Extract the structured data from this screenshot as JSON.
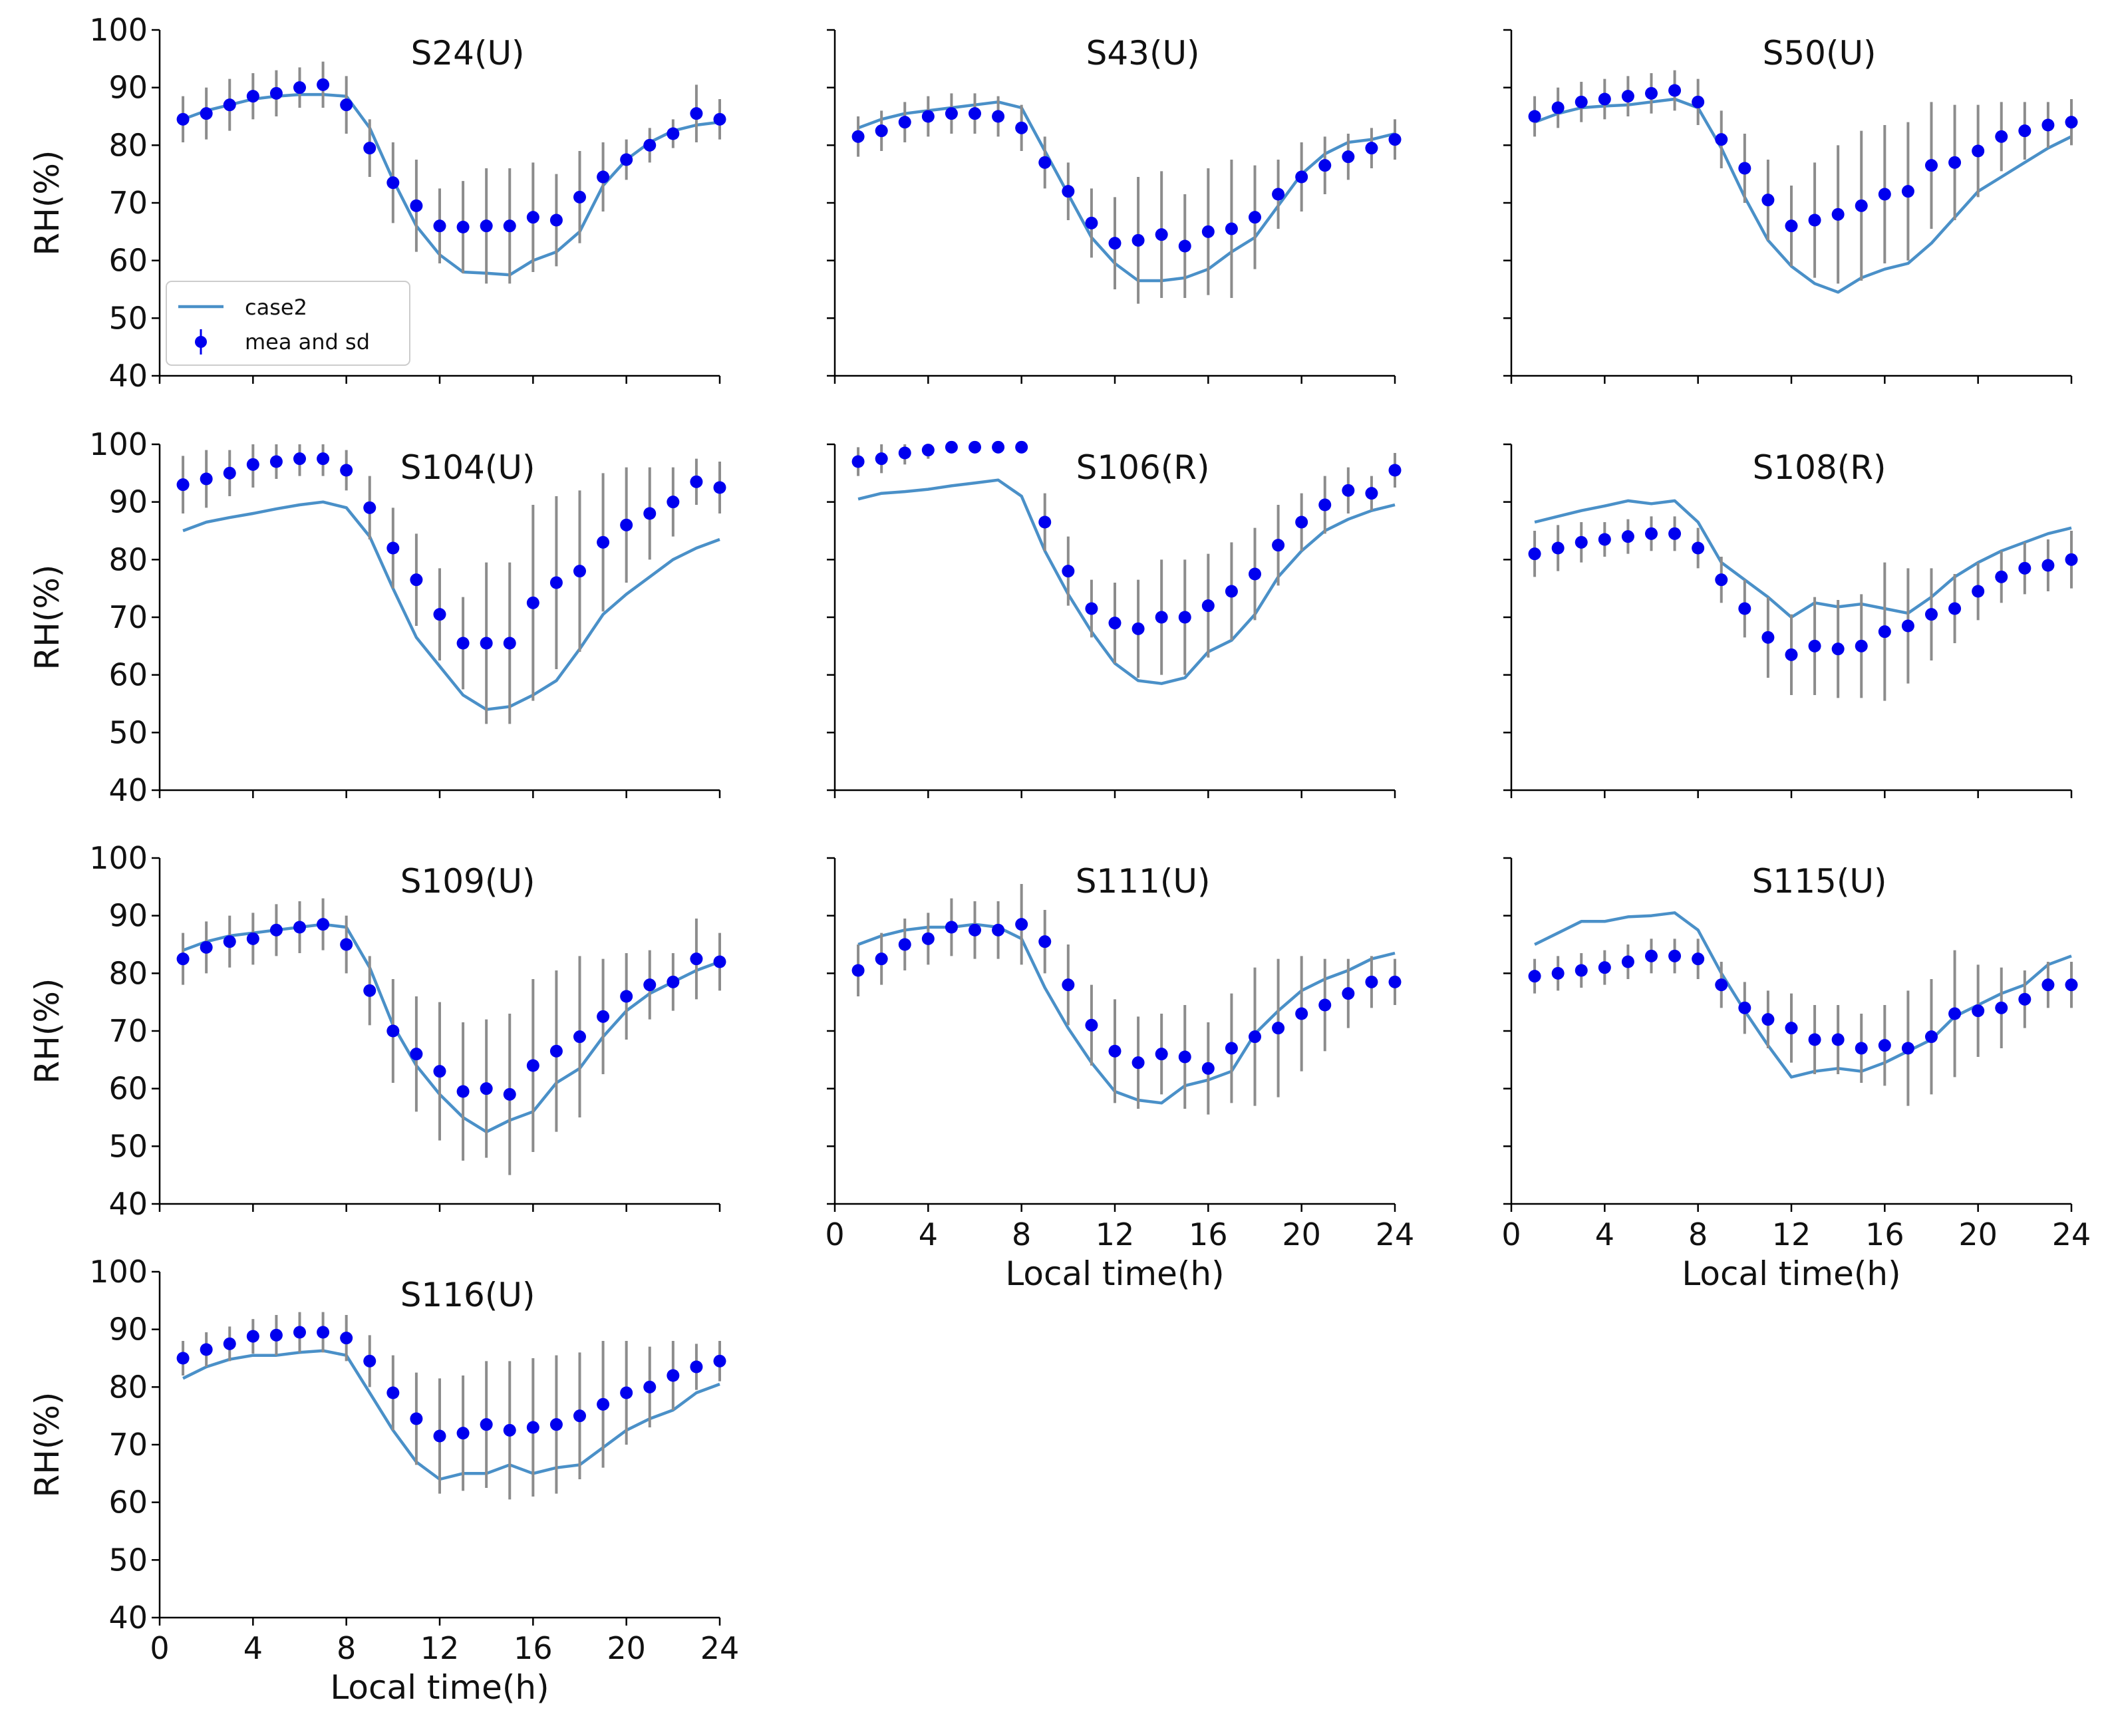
{
  "chart_data": {
    "type": "scatter",
    "xlabel": "Local time(h)",
    "ylabel": "RH(%)",
    "xlim": [
      0,
      24
    ],
    "ylim": [
      40,
      100
    ],
    "xticks": [
      0,
      4,
      8,
      12,
      16,
      20,
      24
    ],
    "yticks": [
      40,
      50,
      60,
      70,
      80,
      90,
      100
    ],
    "hours": [
      1,
      2,
      3,
      4,
      5,
      6,
      7,
      8,
      9,
      10,
      11,
      12,
      13,
      14,
      15,
      16,
      17,
      18,
      19,
      20,
      21,
      22,
      23,
      24
    ],
    "legend": {
      "placement": "lower-left",
      "line_label": "case2",
      "marker_label": "mea and sd"
    },
    "colors": {
      "line": "#4a90c8",
      "marker": "#0000ee",
      "errorbar": "#8c8c8c"
    },
    "grid": false,
    "panels": [
      {
        "title": "S24(U)",
        "case2": [
          84.5,
          86,
          87,
          88,
          88.5,
          88.8,
          88.8,
          88.5,
          83,
          74,
          66,
          61,
          58,
          57.8,
          57.5,
          60,
          61.5,
          65,
          73,
          77.5,
          80.5,
          82.5,
          83.5,
          84
        ],
        "mea": [
          84.5,
          85.5,
          87,
          88.5,
          89,
          90,
          90.5,
          87,
          79.5,
          73.5,
          69.5,
          66,
          65.8,
          66,
          66,
          67.5,
          67,
          71,
          74.5,
          77.5,
          80,
          82,
          85.5,
          84.5
        ],
        "sd": [
          4,
          4.5,
          4.5,
          4,
          4,
          3.5,
          4,
          5,
          5,
          7,
          8,
          6.5,
          8,
          10,
          10,
          9.5,
          8,
          8,
          6,
          3.5,
          3,
          2.5,
          5,
          3.5
        ]
      },
      {
        "title": "S43(U)",
        "case2": [
          83,
          84.5,
          85.5,
          86,
          86.5,
          87,
          87.5,
          86.5,
          79,
          71.5,
          64,
          59.5,
          56.5,
          56.5,
          57,
          58.5,
          61.5,
          64,
          69.5,
          75,
          78.5,
          80.5,
          81,
          82
        ],
        "mea": [
          81.5,
          82.5,
          84,
          85,
          85.5,
          85.5,
          85,
          83,
          77,
          72,
          66.5,
          63,
          63.5,
          64.5,
          62.5,
          65,
          65.5,
          67.5,
          71.5,
          74.5,
          76.5,
          78,
          79.5,
          81
        ],
        "sd": [
          3.5,
          3.5,
          3.5,
          3.5,
          3.5,
          3.5,
          3.5,
          4,
          4.5,
          5,
          6,
          8,
          11,
          11,
          9,
          11,
          12,
          9,
          6,
          6,
          5,
          4,
          3.5,
          3.5
        ]
      },
      {
        "title": "S50(U)",
        "case2": [
          84,
          85.5,
          86.5,
          86.8,
          87,
          87.5,
          88,
          86.5,
          79.5,
          71,
          63.5,
          59,
          56,
          54.5,
          57,
          58.5,
          59.5,
          63,
          67.5,
          72,
          74.5,
          77,
          79.5,
          81.5
        ],
        "mea": [
          85,
          86.5,
          87.5,
          88,
          88.5,
          89,
          89.5,
          87.5,
          81,
          76,
          70.5,
          66,
          67,
          68,
          69.5,
          71.5,
          72,
          76.5,
          77,
          79,
          81.5,
          82.5,
          83.5,
          84
        ],
        "sd": [
          3.5,
          3.5,
          3.5,
          3.5,
          3.5,
          3.5,
          3.5,
          4,
          5,
          6,
          7,
          7,
          10,
          12,
          13,
          12,
          12,
          11,
          10,
          8,
          6,
          5,
          4,
          4
        ]
      },
      {
        "title": "S104(U)",
        "case2": [
          85,
          86.5,
          87.3,
          88,
          88.8,
          89.5,
          90,
          89,
          84,
          75,
          66.5,
          61.5,
          56.5,
          54,
          54.5,
          56.5,
          59,
          64.5,
          70.5,
          74,
          77,
          80,
          82,
          83.5
        ],
        "mea": [
          93,
          94,
          95,
          96.5,
          97,
          97.5,
          97.5,
          95.5,
          89,
          82,
          76.5,
          70.5,
          65.5,
          65.5,
          65.5,
          72.5,
          76,
          78,
          83,
          86,
          88,
          90,
          93.5,
          92.5
        ],
        "sd": [
          5,
          5,
          4,
          4,
          3,
          3,
          3,
          3.5,
          5.5,
          7,
          8,
          8,
          8,
          14,
          14,
          17,
          15,
          14,
          12,
          10,
          8,
          6,
          4,
          4.5
        ]
      },
      {
        "title": "S106(R)",
        "case2": [
          90.5,
          91.5,
          91.8,
          92.2,
          92.8,
          93.3,
          93.8,
          91,
          81.5,
          74,
          67.5,
          62,
          59,
          58.5,
          59.5,
          64,
          66,
          70.5,
          77,
          81.5,
          85,
          87,
          88.5,
          89.5
        ],
        "mea": [
          97,
          97.5,
          98.5,
          99,
          99.5,
          99.5,
          99.5,
          99.5,
          86.5,
          78,
          71.5,
          69,
          68,
          70,
          70,
          72,
          74.5,
          77.5,
          82.5,
          86.5,
          89.5,
          92,
          91.5,
          95.5
        ],
        "sd": [
          2.5,
          2.5,
          2,
          1.5,
          1,
          0.8,
          0.8,
          0.8,
          5,
          6,
          5,
          7,
          8.5,
          10,
          10,
          9,
          8.5,
          8,
          7,
          5,
          5,
          4,
          3,
          3
        ]
      },
      {
        "title": "S108(R)",
        "case2": [
          86.5,
          87.5,
          88.5,
          89.3,
          90.2,
          89.7,
          90.2,
          86.5,
          79.5,
          76.5,
          73.5,
          70,
          72.5,
          71.8,
          72.3,
          71.5,
          70.7,
          73.5,
          77,
          79.5,
          81.5,
          83,
          84.5,
          85.5
        ],
        "mea": [
          81,
          82,
          83,
          83.5,
          84,
          84.5,
          84.5,
          82,
          76.5,
          71.5,
          66.5,
          63.5,
          65,
          64.5,
          65,
          67.5,
          68.5,
          70.5,
          71.5,
          74.5,
          77,
          78.5,
          79,
          80
        ],
        "sd": [
          4,
          4,
          3.5,
          3,
          3,
          3,
          3,
          3.5,
          4,
          5,
          7,
          7,
          8.5,
          8.5,
          9,
          12,
          10,
          8,
          6,
          5,
          4.5,
          4.5,
          4.5,
          5
        ]
      },
      {
        "title": "S109(U)",
        "case2": [
          84,
          85.5,
          86.5,
          87,
          87.5,
          88,
          88.5,
          88,
          81,
          71,
          64,
          59,
          55,
          52.5,
          54.5,
          56,
          61,
          63.5,
          69,
          73.5,
          76.5,
          78.5,
          80.5,
          82
        ],
        "mea": [
          82.5,
          84.5,
          85.5,
          86,
          87.5,
          88,
          88.5,
          85,
          77,
          70,
          66,
          63,
          59.5,
          60,
          59,
          64,
          66.5,
          69,
          72.5,
          76,
          78,
          78.5,
          82.5,
          82
        ],
        "sd": [
          4.5,
          4.5,
          4.5,
          4.5,
          4.5,
          4.5,
          4.5,
          5,
          6,
          9,
          10,
          12,
          12,
          12,
          14,
          15,
          14,
          14,
          10,
          7.5,
          6,
          5,
          7,
          5
        ]
      },
      {
        "title": "S111(U)",
        "case2": [
          85,
          86.5,
          87.5,
          88,
          88,
          88.5,
          88,
          86,
          77.5,
          70.5,
          64.5,
          59.5,
          58,
          57.5,
          60.5,
          61.5,
          63,
          69.5,
          73.5,
          77,
          79,
          80.5,
          82.5,
          83.5
        ],
        "mea": [
          80.5,
          82.5,
          85,
          86,
          88,
          87.5,
          87.5,
          88.5,
          85.5,
          78,
          71,
          66.5,
          64.5,
          66,
          65.5,
          63.5,
          67,
          69,
          70.5,
          73,
          74.5,
          76.5,
          78.5,
          78.5
        ],
        "sd": [
          4.5,
          4.5,
          4.5,
          4.5,
          5,
          5,
          5,
          7,
          5.5,
          7,
          7,
          9,
          8,
          7,
          9,
          8,
          9.5,
          12,
          12,
          10,
          8,
          6,
          4.5,
          4
        ]
      },
      {
        "title": "S115(U)",
        "case2": [
          85,
          87,
          89,
          89,
          89.8,
          90,
          90.5,
          87.5,
          80,
          73.5,
          67.5,
          62,
          63,
          63.5,
          63,
          64.5,
          66.5,
          68.5,
          72.5,
          74.5,
          76.5,
          78,
          81.5,
          83
        ],
        "mea": [
          79.5,
          80,
          80.5,
          81,
          82,
          83,
          83,
          82.5,
          78,
          74,
          72,
          70.5,
          68.5,
          68.5,
          67,
          67.5,
          67,
          69,
          73,
          73.5,
          74,
          75.5,
          78,
          78
        ],
        "sd": [
          3,
          3,
          3,
          3,
          3,
          3,
          3,
          3.5,
          4,
          4.5,
          5,
          6,
          6,
          6,
          6,
          7,
          10,
          10,
          11,
          8,
          7,
          5,
          4,
          4
        ]
      },
      {
        "title": "S116(U)",
        "case2": [
          81.5,
          83.5,
          84.8,
          85.5,
          85.5,
          86,
          86.3,
          85.5,
          79,
          72.5,
          67,
          64,
          65,
          65,
          66.5,
          65,
          66,
          66.5,
          69.5,
          72.5,
          74.5,
          76,
          79,
          80.5
        ],
        "mea": [
          85,
          86.5,
          87.5,
          88.8,
          89,
          89.5,
          89.5,
          88.5,
          84.5,
          79,
          74.5,
          71.5,
          72,
          73.5,
          72.5,
          73,
          73.5,
          75,
          77,
          79,
          80,
          82,
          83.5,
          84.5
        ],
        "sd": [
          3,
          3,
          3,
          3,
          3.5,
          3.5,
          3.5,
          4,
          4.5,
          6.5,
          8,
          10,
          10,
          11,
          12,
          12,
          12,
          11,
          11,
          9,
          7,
          6,
          4,
          3.5
        ]
      }
    ]
  }
}
